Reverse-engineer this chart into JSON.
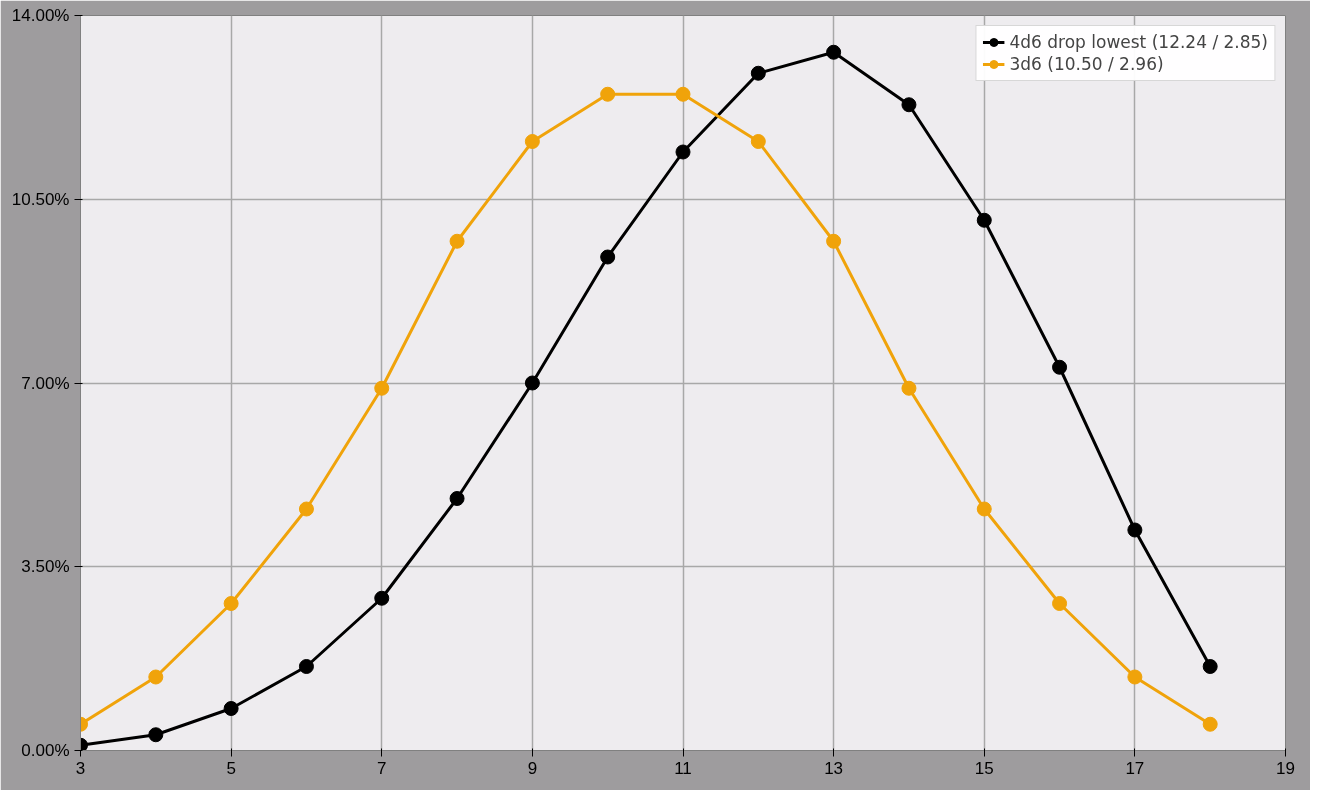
{
  "chart_data": {
    "type": "line",
    "x": [
      3,
      4,
      5,
      6,
      7,
      8,
      9,
      10,
      11,
      12,
      13,
      14,
      15,
      16,
      17,
      18
    ],
    "series": [
      {
        "name": "4d6 drop lowest (12.24 / 2.85)",
        "color": "#000000",
        "values": [
          0.1,
          0.3,
          0.8,
          1.6,
          2.9,
          4.8,
          7.0,
          9.4,
          11.4,
          12.9,
          13.3,
          12.3,
          10.1,
          7.3,
          4.2,
          1.6
        ]
      },
      {
        "name": "3d6 (10.50 / 2.96)",
        "color": "#f0a30a",
        "values": [
          0.5,
          1.4,
          2.8,
          4.6,
          6.9,
          9.7,
          11.6,
          12.5,
          12.5,
          11.6,
          9.7,
          6.9,
          4.6,
          2.8,
          1.4,
          0.5
        ]
      }
    ],
    "xlim": [
      3,
      19
    ],
    "xticks": [
      3,
      5,
      7,
      9,
      11,
      13,
      15,
      17,
      19
    ],
    "ylim": [
      0,
      14
    ],
    "yticks": [
      {
        "value": 0,
        "label": "0.00%"
      },
      {
        "value": 3.5,
        "label": "3.50%"
      },
      {
        "value": 7,
        "label": "7.00%"
      },
      {
        "value": 10.5,
        "label": "10.50%"
      },
      {
        "value": 14,
        "label": "14.00%"
      }
    ],
    "grid": true,
    "legend": "top right",
    "marker": "circle",
    "line_style": "solid"
  }
}
